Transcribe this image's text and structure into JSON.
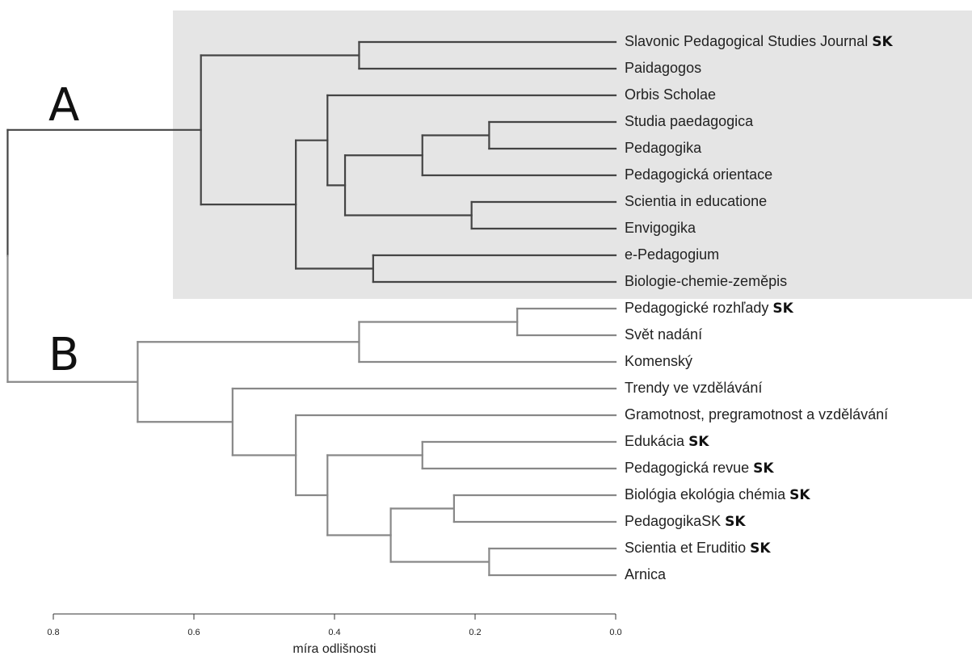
{
  "clusters": [
    {
      "id": "A",
      "label": "A",
      "color": "#444444",
      "highlight": "#e5e5e5"
    },
    {
      "id": "B",
      "label": "B",
      "color": "#888888"
    }
  ],
  "leaves": [
    {
      "name": "Slavonic Pedagogical Studies Journal",
      "tag": "SK",
      "cluster": "A"
    },
    {
      "name": "Paidagogos",
      "tag": "",
      "cluster": "A"
    },
    {
      "name": "Orbis Scholae",
      "tag": "",
      "cluster": "A"
    },
    {
      "name": "Studia paedagogica",
      "tag": "",
      "cluster": "A"
    },
    {
      "name": "Pedagogika",
      "tag": "",
      "cluster": "A"
    },
    {
      "name": "Pedagogická orientace",
      "tag": "",
      "cluster": "A"
    },
    {
      "name": "Scientia in educatione",
      "tag": "",
      "cluster": "A"
    },
    {
      "name": "Envigogika",
      "tag": "",
      "cluster": "A"
    },
    {
      "name": "e-Pedagogium",
      "tag": "",
      "cluster": "A"
    },
    {
      "name": "Biologie-chemie-zeměpis",
      "tag": "",
      "cluster": "A"
    },
    {
      "name": "Pedagogické rozhľady",
      "tag": "SK",
      "cluster": "B"
    },
    {
      "name": "Svět nadání",
      "tag": "",
      "cluster": "B"
    },
    {
      "name": "Komenský",
      "tag": "",
      "cluster": "B"
    },
    {
      "name": "Trendy ve vzdělávání",
      "tag": "",
      "cluster": "B"
    },
    {
      "name": "Gramotnost, pregramotnost a vzdělávání",
      "tag": "",
      "cluster": "B"
    },
    {
      "name": "Edukácia",
      "tag": "SK",
      "cluster": "B"
    },
    {
      "name": "Pedagogická revue",
      "tag": "SK",
      "cluster": "B"
    },
    {
      "name": "Biológia ekológia chémia",
      "tag": "SK",
      "cluster": "B"
    },
    {
      "name": "PedagogikaSK",
      "tag": "SK",
      "cluster": "B"
    },
    {
      "name": "Scientia et Eruditio",
      "tag": "SK",
      "cluster": "B"
    },
    {
      "name": "Arnica",
      "tag": "",
      "cluster": "B"
    }
  ],
  "merges": [
    {
      "a": "L0",
      "b": "L1",
      "height": 0.365,
      "cluster": "A"
    },
    {
      "a": "L3",
      "b": "L4",
      "height": 0.18,
      "cluster": "A"
    },
    {
      "a": "M1",
      "b": "L5",
      "height": 0.275,
      "cluster": "A"
    },
    {
      "a": "L6",
      "b": "L7",
      "height": 0.205,
      "cluster": "A"
    },
    {
      "a": "M2",
      "b": "M3",
      "height": 0.385,
      "cluster": "A"
    },
    {
      "a": "L2",
      "b": "M4",
      "height": 0.41,
      "cluster": "A"
    },
    {
      "a": "L8",
      "b": "L9",
      "height": 0.345,
      "cluster": "A"
    },
    {
      "a": "M5",
      "b": "M6",
      "height": 0.455,
      "cluster": "A"
    },
    {
      "a": "M0",
      "b": "M7",
      "height": 0.59,
      "cluster": "A"
    },
    {
      "a": "L10",
      "b": "L11",
      "height": 0.14,
      "cluster": "B"
    },
    {
      "a": "M9",
      "b": "L12",
      "height": 0.365,
      "cluster": "B"
    },
    {
      "a": "L15",
      "b": "L16",
      "height": 0.275,
      "cluster": "B"
    },
    {
      "a": "L17",
      "b": "L18",
      "height": 0.23,
      "cluster": "B"
    },
    {
      "a": "L19",
      "b": "L20",
      "height": 0.18,
      "cluster": "B"
    },
    {
      "a": "M12",
      "b": "M13",
      "height": 0.32,
      "cluster": "B"
    },
    {
      "a": "M11",
      "b": "M14",
      "height": 0.41,
      "cluster": "B"
    },
    {
      "a": "L14",
      "b": "M15",
      "height": 0.455,
      "cluster": "B"
    },
    {
      "a": "L13",
      "b": "M16",
      "height": 0.545,
      "cluster": "B"
    },
    {
      "a": "M10",
      "b": "M17",
      "height": 0.68,
      "cluster": "B"
    },
    {
      "a": "M8",
      "b": "M18",
      "height": 0.865,
      "cluster": "root"
    }
  ],
  "axis": {
    "title": "míra odlišnosti",
    "ticks": [
      {
        "value": 0.8,
        "label": "0.8"
      },
      {
        "value": 0.6,
        "label": "0.6"
      },
      {
        "value": 0.4,
        "label": "0.4"
      },
      {
        "value": 0.2,
        "label": "0.2"
      },
      {
        "value": 0.0,
        "label": "0.0"
      }
    ]
  }
}
